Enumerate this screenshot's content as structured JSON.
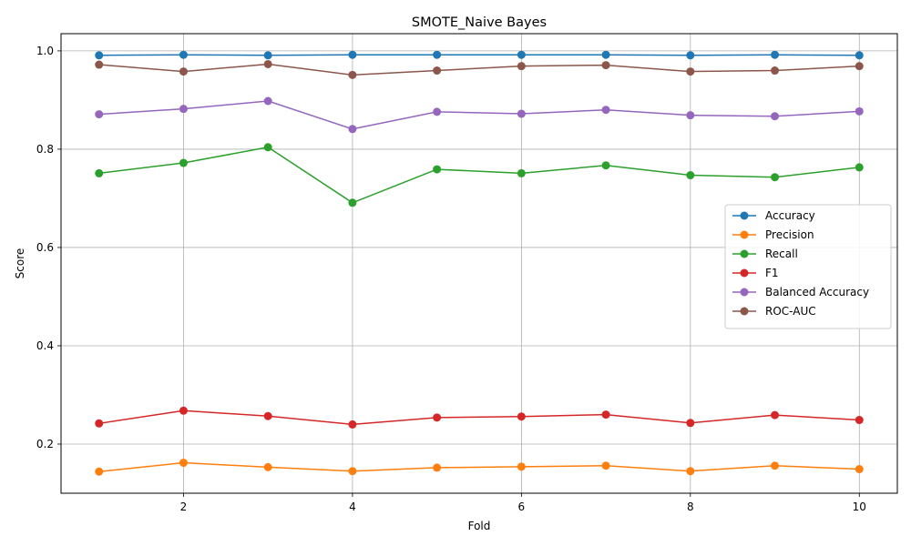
{
  "chart_data": {
    "type": "line",
    "title": "SMOTE_Naive Bayes",
    "xlabel": "Fold",
    "ylabel": "Score",
    "xlim": [
      0.55,
      10.45
    ],
    "ylim": [
      0.1,
      1.035
    ],
    "x_ticks": [
      2,
      4,
      6,
      8,
      10
    ],
    "y_ticks": [
      0.2,
      0.4,
      0.6,
      0.8,
      1.0
    ],
    "x_tick_labels": [
      "2",
      "4",
      "6",
      "8",
      "10"
    ],
    "y_tick_labels": [
      "0.2",
      "0.4",
      "0.6",
      "0.8",
      "1.0"
    ],
    "grid": true,
    "legend_position": "center-right",
    "x": [
      1,
      2,
      3,
      4,
      5,
      6,
      7,
      8,
      9,
      10
    ],
    "series": [
      {
        "name": "Accuracy",
        "color": "#1f77b4",
        "values": [
          0.991,
          0.992,
          0.991,
          0.992,
          0.992,
          0.992,
          0.992,
          0.991,
          0.992,
          0.991
        ]
      },
      {
        "name": "Precision",
        "color": "#ff7f0e",
        "values": [
          0.144,
          0.162,
          0.153,
          0.145,
          0.152,
          0.154,
          0.156,
          0.145,
          0.156,
          0.149
        ]
      },
      {
        "name": "Recall",
        "color": "#2ca02c",
        "values": [
          0.751,
          0.772,
          0.804,
          0.691,
          0.759,
          0.751,
          0.767,
          0.747,
          0.743,
          0.763
        ]
      },
      {
        "name": "F1",
        "color": "#d62728",
        "values": [
          0.242,
          0.268,
          0.257,
          0.24,
          0.254,
          0.256,
          0.26,
          0.243,
          0.259,
          0.249
        ]
      },
      {
        "name": "Balanced Accuracy",
        "color": "#9467bd",
        "values": [
          0.871,
          0.882,
          0.898,
          0.841,
          0.876,
          0.872,
          0.88,
          0.869,
          0.867,
          0.877
        ]
      },
      {
        "name": "ROC-AUC",
        "color": "#8c564b",
        "values": [
          0.972,
          0.958,
          0.973,
          0.951,
          0.96,
          0.969,
          0.971,
          0.958,
          0.96,
          0.969
        ]
      }
    ]
  }
}
